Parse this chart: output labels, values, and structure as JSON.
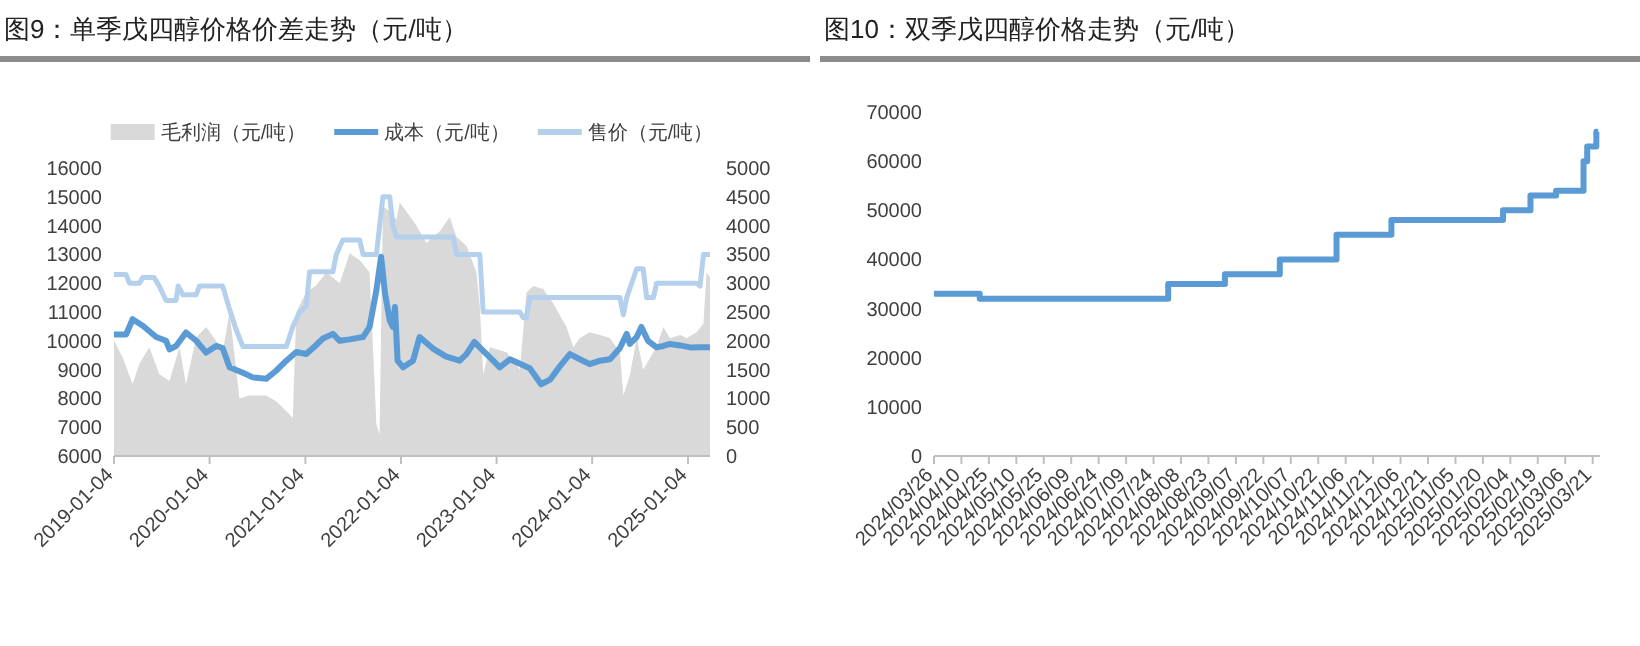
{
  "chart_data": [
    {
      "type": "line",
      "title": "图9：单季戊四醇价格价差走势（元/吨）",
      "legend": "top",
      "xlim": [
        "2019-01-04",
        "2025-03-29"
      ],
      "xticks": [
        "2019-01-04",
        "2020-01-04",
        "2021-01-04",
        "2022-01-04",
        "2023-01-04",
        "2024-01-04",
        "2025-01-04"
      ],
      "ylim": [
        6000,
        16000
      ],
      "yticks": [
        6000,
        7000,
        8000,
        9000,
        10000,
        11000,
        12000,
        13000,
        14000,
        15000,
        16000
      ],
      "y2lim": [
        0,
        5000
      ],
      "y2ticks": [
        0,
        500,
        1000,
        1500,
        2000,
        2500,
        3000,
        3500,
        4000,
        4500,
        5000
      ],
      "series": [
        {
          "name": "毛利润（元/吨）",
          "type": "area",
          "axis": "y2",
          "color": "#d9d9d9",
          "x": [
            "2019-01-04",
            "2019-02-06",
            "2019-03-16",
            "2019-04-11",
            "2019-05-19",
            "2019-06-26",
            "2019-08-04",
            "2019-09-11",
            "2019-10-06",
            "2019-11-14",
            "2019-12-22",
            "2020-01-29",
            "2020-02-23",
            "2020-03-20",
            "2020-04-02",
            "2020-04-27",
            "2020-06-04",
            "2020-08-07",
            "2020-09-14",
            "2020-10-23",
            "2020-11-17",
            "2020-11-30",
            "2021-01-07",
            "2021-02-14",
            "2021-03-25",
            "2021-05-15",
            "2021-06-22",
            "2021-07-30",
            "2021-09-06",
            "2021-10-02",
            "2021-10-14",
            "2021-10-27",
            "2021-11-22",
            "2021-12-17",
            "2021-12-30",
            "2022-01-24",
            "2022-03-04",
            "2022-04-11",
            "2022-06-01",
            "2022-07-09",
            "2022-08-04",
            "2022-09-11",
            "2022-10-19",
            "2022-11-01",
            "2022-11-14",
            "2022-12-09",
            "2023-02-11",
            "2023-04-03",
            "2023-04-28",
            "2023-05-24",
            "2023-07-01",
            "2023-08-08",
            "2023-09-28",
            "2023-10-24",
            "2023-11-18",
            "2023-12-26",
            "2024-02-03",
            "2024-03-12",
            "2024-04-19",
            "2024-05-02",
            "2024-05-27",
            "2024-06-22",
            "2024-07-17",
            "2024-08-12",
            "2024-09-06",
            "2024-10-02",
            "2024-10-27",
            "2024-12-05",
            "2024-12-30",
            "2025-02-06",
            "2025-03-04",
            "2025-03-16",
            "2025-03-29"
          ],
          "values": [
            2000,
            1710,
            1250,
            1600,
            1890,
            1420,
            1300,
            1890,
            1240,
            2060,
            2240,
            2000,
            1800,
            2500,
            2000,
            1000,
            1050,
            1050,
            950,
            780,
            660,
            2500,
            2840,
            2960,
            3190,
            3000,
            3520,
            3400,
            3190,
            550,
            370,
            4330,
            4250,
            4100,
            4400,
            4250,
            4000,
            3700,
            3900,
            4150,
            3800,
            3650,
            3190,
            2600,
            1420,
            1890,
            1800,
            1500,
            2840,
            2950,
            2900,
            2650,
            2240,
            1890,
            2050,
            2150,
            2100,
            2050,
            1800,
            1050,
            1400,
            2050,
            1500,
            1700,
            1900,
            2240,
            2050,
            2100,
            2050,
            2150,
            2300,
            3190,
            3100
          ]
        },
        {
          "name": "成本（元/吨）",
          "color": "#5b9bd5",
          "x": [
            "2019-01-04",
            "2019-02-19",
            "2019-03-16",
            "2019-04-24",
            "2019-06-14",
            "2019-07-22",
            "2019-08-04",
            "2019-08-29",
            "2019-10-06",
            "2019-11-14",
            "2019-12-22",
            "2020-01-29",
            "2020-02-23",
            "2020-03-20",
            "2020-05-10",
            "2020-06-17",
            "2020-08-07",
            "2020-09-14",
            "2020-10-23",
            "2020-11-30",
            "2021-01-07",
            "2021-02-02",
            "2021-03-12",
            "2021-04-19",
            "2021-05-15",
            "2021-06-22",
            "2021-08-12",
            "2021-09-06",
            "2021-10-02",
            "2021-10-20",
            "2021-11-04",
            "2021-11-22",
            "2021-12-04",
            "2021-12-12",
            "2021-12-22",
            "2022-01-12",
            "2022-02-19",
            "2022-03-16",
            "2022-05-06",
            "2022-06-26",
            "2022-08-16",
            "2022-09-11",
            "2022-10-11",
            "2022-11-14",
            "2022-12-22",
            "2023-01-16",
            "2023-02-24",
            "2023-04-03",
            "2023-05-11",
            "2023-06-23",
            "2023-07-27",
            "2023-09-03",
            "2023-10-11",
            "2023-11-18",
            "2023-12-26",
            "2024-02-03",
            "2024-03-12",
            "2024-04-19",
            "2024-05-15",
            "2024-05-27",
            "2024-06-22",
            "2024-07-10",
            "2024-08-04",
            "2024-09-06",
            "2024-10-02",
            "2024-10-27",
            "2024-12-05",
            "2025-01-12",
            "2025-02-19",
            "2025-03-29"
          ],
          "values": [
            10220,
            10220,
            10750,
            10520,
            10130,
            10000,
            9700,
            9820,
            10290,
            10000,
            9590,
            9820,
            9750,
            9080,
            8890,
            8730,
            8680,
            8960,
            9310,
            9610,
            9540,
            9750,
            10080,
            10240,
            10000,
            10050,
            10130,
            10480,
            11760,
            12920,
            11640,
            10710,
            10480,
            11170,
            9310,
            9080,
            9310,
            10130,
            9730,
            9450,
            9310,
            9540,
            9960,
            9650,
            9310,
            9080,
            9360,
            9200,
            9050,
            8490,
            8650,
            9120,
            9540,
            9360,
            9190,
            9310,
            9360,
            9750,
            10240,
            9890,
            10130,
            10480,
            10000,
            9770,
            9820,
            9890,
            9840,
            9770,
            9780,
            9780
          ]
        },
        {
          "name": "售价（元/吨）",
          "color": "#b4d0ec",
          "x": [
            "2019-01-04",
            "2019-02-19",
            "2019-03-04",
            "2019-04-11",
            "2019-04-24",
            "2019-06-06",
            "2019-06-26",
            "2019-07-22",
            "2019-08-29",
            "2019-09-06",
            "2019-09-24",
            "2019-11-14",
            "2019-11-26",
            "2020-02-23",
            "2020-03-20",
            "2020-04-14",
            "2020-05-10",
            "2020-10-23",
            "2020-11-17",
            "2020-12-13",
            "2021-01-07",
            "2021-01-20",
            "2021-04-19",
            "2021-05-02",
            "2021-05-27",
            "2021-07-30",
            "2021-08-12",
            "2021-10-02",
            "2021-10-27",
            "2021-11-22",
            "2021-12-04",
            "2021-12-17",
            "2022-07-22",
            "2022-08-04",
            "2022-11-01",
            "2022-11-14",
            "2023-04-03",
            "2023-04-16",
            "2023-04-28",
            "2023-05-11",
            "2024-04-19",
            "2024-05-02",
            "2024-05-15",
            "2024-06-22",
            "2024-07-17",
            "2024-07-30",
            "2024-08-25",
            "2024-09-06",
            "2025-02-06",
            "2025-02-19",
            "2025-03-04",
            "2025-03-29"
          ],
          "values": [
            12300,
            12300,
            12000,
            12000,
            12200,
            12200,
            11900,
            11400,
            11400,
            11900,
            11600,
            11600,
            11900,
            11900,
            11100,
            10400,
            9800,
            9800,
            10500,
            11000,
            11200,
            12400,
            12400,
            13000,
            13500,
            13500,
            13000,
            13000,
            15000,
            15000,
            14000,
            13600,
            13600,
            13000,
            13000,
            11000,
            11000,
            10800,
            10800,
            11500,
            11500,
            10900,
            11500,
            12500,
            12500,
            11500,
            11500,
            12000,
            12000,
            11900,
            13000,
            13000
          ]
        }
      ]
    },
    {
      "type": "step",
      "title": "图10：双季戊四醇价格走势（元/吨）",
      "xlim": [
        "2024-03-26",
        "2025-03-25"
      ],
      "xticks": [
        {
          "value": "2024-03-26",
          "label": "2024/03/26"
        },
        {
          "value": "2024-04-10",
          "label": "2024/04/10"
        },
        {
          "value": "2024-04-25",
          "label": "2024/04/25"
        },
        {
          "value": "2024-05-10",
          "label": "2024/05/10"
        },
        {
          "value": "2024-05-25",
          "label": "2024/05/25"
        },
        {
          "value": "2024-06-09",
          "label": "2024/06/09"
        },
        {
          "value": "2024-06-24",
          "label": "2024/06/24"
        },
        {
          "value": "2024-07-09",
          "label": "2024/07/09"
        },
        {
          "value": "2024-07-24",
          "label": "2024/07/24"
        },
        {
          "value": "2024-08-08",
          "label": "2024/08/08"
        },
        {
          "value": "2024-08-23",
          "label": "2024/08/23"
        },
        {
          "value": "2024-09-07",
          "label": "2024/09/07"
        },
        {
          "value": "2024-09-22",
          "label": "2024/09/22"
        },
        {
          "value": "2024-10-07",
          "label": "2024/10/07"
        },
        {
          "value": "2024-10-22",
          "label": "2024/10/22"
        },
        {
          "value": "2024-11-06",
          "label": "2024/11/06"
        },
        {
          "value": "2024-11-21",
          "label": "2024/11/21"
        },
        {
          "value": "2024-12-06",
          "label": "2024/12/06"
        },
        {
          "value": "2024-12-21",
          "label": "2024/12/21"
        },
        {
          "value": "2025-01-05",
          "label": "2025/01/05"
        },
        {
          "value": "2025-01-20",
          "label": "2025/01/20"
        },
        {
          "value": "2025-02-04",
          "label": "2025/02/04"
        },
        {
          "value": "2025-02-19",
          "label": "2025/02/19"
        },
        {
          "value": "2025-03-06",
          "label": "2025/03/06"
        },
        {
          "value": "2025-03-21",
          "label": "2025/03/21"
        }
      ],
      "ylim": [
        0,
        70000
      ],
      "yticks": [
        0,
        10000,
        20000,
        30000,
        40000,
        50000,
        60000,
        70000
      ],
      "series": [
        {
          "color": "#5b9bd5",
          "x": [
            "2024-03-26",
            "2024-04-20",
            "2024-08-01",
            "2024-09-01",
            "2024-10-01",
            "2024-11-01",
            "2024-12-01",
            "2025-01-31",
            "2025-02-15",
            "2025-03-01",
            "2025-03-16",
            "2025-03-18",
            "2025-03-23",
            "2025-03-24"
          ],
          "values": [
            33000,
            32000,
            35000,
            37000,
            40000,
            45000,
            48000,
            50000,
            53000,
            54000,
            60000,
            63000,
            66000,
            66000
          ]
        }
      ]
    }
  ]
}
